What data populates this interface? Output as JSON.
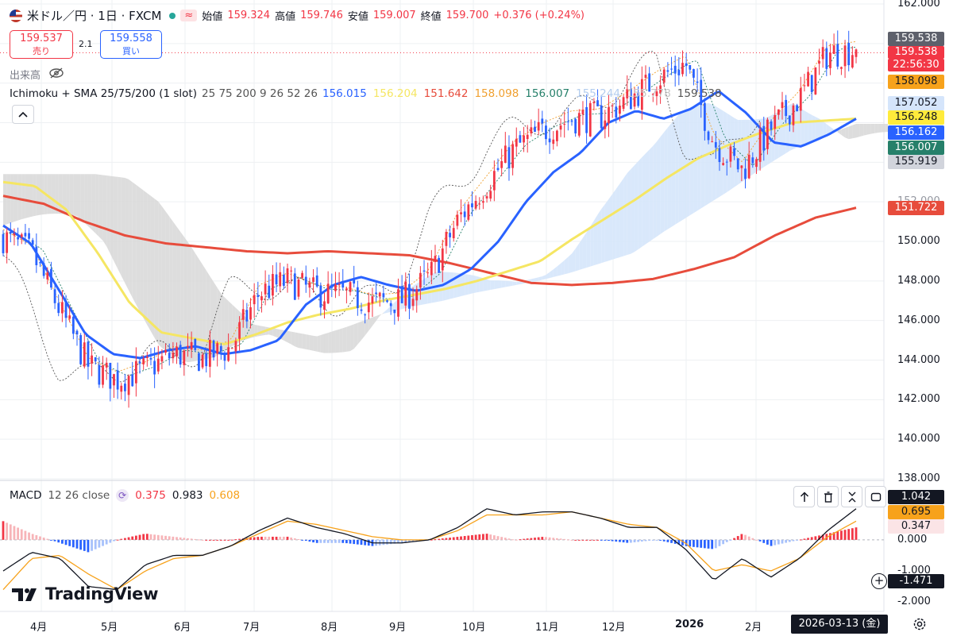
{
  "header": {
    "symbol": "米ドル／円 · 1日 · FXCM",
    "open_label": "始値",
    "open": "159.324",
    "high_label": "高値",
    "high": "159.746",
    "low_label": "安値",
    "low": "159.007",
    "close_label": "終値",
    "close": "159.700",
    "change": "+0.376 (+0.24%)",
    "sell_price": "159.537",
    "sell_label": "売り",
    "spread": "2.1",
    "buy_price": "159.558",
    "buy_label": "買い",
    "volume_label": "出来高"
  },
  "indicator": {
    "name": "Ichimoku + SMA 25/75/200 (1 slot)",
    "params": "25 75 200 9 26 52 26",
    "values": [
      {
        "text": "156.015",
        "color": "#2962ff"
      },
      {
        "text": "156.204",
        "color": "#f5e663"
      },
      {
        "text": "151.642",
        "color": "#e74c3c"
      },
      {
        "text": "158.098",
        "color": "#f0a030"
      },
      {
        "text": "156.007",
        "color": "#26806a"
      },
      {
        "text": "155.244",
        "color": "#b3cdee"
      },
      {
        "text": "155.778",
        "color": "#c7c7c7"
      },
      {
        "text": "159.538",
        "color": "#555555"
      }
    ]
  },
  "macd": {
    "name": "MACD",
    "params": "12 26 close",
    "hist": "0.375",
    "macd": "0.983",
    "signal": "0.608",
    "labels": {
      "macd": "1.042",
      "signal": "0.695",
      "hist": "0.347",
      "cross": "-1.471"
    },
    "ticks": [
      "0.000",
      "-1.000",
      "-2.000"
    ]
  },
  "price_axis": {
    "ticks": [
      "162.000",
      "150.000",
      "148.000",
      "146.000",
      "144.000",
      "142.000",
      "140.000",
      "138.000"
    ],
    "partial_tick": "152.000",
    "labels": [
      {
        "text": "159.538",
        "bg": "#5d606b",
        "fg": "#ffffff"
      },
      {
        "text": "159.538",
        "bg": "#f23645",
        "fg": "#ffffff"
      },
      {
        "text": "22:56:30",
        "bg": "#f23645",
        "fg": "#ffffff"
      },
      {
        "text": "158.098",
        "bg": "#f7a21b",
        "fg": "#131722"
      },
      {
        "text": "157.052",
        "bg": "#d5e5fb",
        "fg": "#131722"
      },
      {
        "text": "156.248",
        "bg": "#ffeb3b",
        "fg": "#131722"
      },
      {
        "text": "156.162",
        "bg": "#2962ff",
        "fg": "#ffffff"
      },
      {
        "text": "156.007",
        "bg": "#26806a",
        "fg": "#ffffff"
      },
      {
        "text": "155.919",
        "bg": "#d1d4dc",
        "fg": "#131722"
      },
      {
        "text": "151.722",
        "bg": "#e74c3c",
        "fg": "#ffffff"
      }
    ]
  },
  "time_axis": {
    "labels": [
      "4月",
      "5月",
      "6月",
      "7月",
      "8月",
      "9月",
      "10月",
      "11月",
      "12月",
      "2026",
      "2月"
    ],
    "cursor_date": "2026-03-13 (金)"
  },
  "brand": "TradingView",
  "colors": {
    "up": "#f23645",
    "down": "#2962ff",
    "sma25": "#2962ff",
    "sma75": "#f5e663",
    "sma200": "#e74c3c",
    "cloud_bull": "#d5e5fb",
    "cloud_bear": "#d9d9d9"
  },
  "chart_data": [
    {
      "type": "candlestick",
      "title": "米ドル／円 · 1日 · FXCM",
      "ylim": [
        138,
        162
      ],
      "x_months": [
        "4月",
        "5月",
        "6月",
        "7月",
        "8月",
        "9月",
        "10月",
        "11月",
        "12月",
        "2026",
        "2月"
      ],
      "sma25": [
        150.8,
        149.9,
        147.6,
        145.3,
        144.3,
        144.1,
        144.5,
        144.7,
        144.3,
        144.5,
        145.0,
        146.8,
        147.8,
        148.2,
        147.8,
        147.5,
        147.8,
        148.6,
        150.0,
        152.0,
        153.5,
        154.5,
        156.0,
        156.6,
        156.2,
        156.7,
        157.6,
        156.5,
        155.0,
        154.8,
        155.4,
        156.2
      ],
      "sma75": [
        153.0,
        152.8,
        151.6,
        149.4,
        146.9,
        145.4,
        145.1,
        144.8,
        145.3,
        145.9,
        146.3,
        146.6,
        147.0,
        147.3,
        147.6,
        148.0,
        148.5,
        149.0,
        150.1,
        151.1,
        152.1,
        153.2,
        154.2,
        154.9,
        155.5,
        156.0,
        156.1,
        156.2
      ],
      "sma200": [
        152.3,
        151.9,
        151.0,
        150.3,
        149.9,
        149.7,
        149.5,
        149.4,
        149.5,
        149.4,
        149.3,
        148.9,
        148.4,
        147.9,
        147.8,
        147.9,
        148.1,
        148.6,
        149.2,
        150.3,
        151.2,
        151.7
      ],
      "candles_close_sample": [
        150.2,
        149.4,
        146.5,
        143.7,
        143.0,
        143.5,
        144.3,
        144.1,
        144.6,
        147.4,
        148.0,
        147.4,
        147.3,
        146.9,
        147.0,
        148.2,
        151.1,
        152.9,
        154.7,
        155.6,
        156.2,
        156.3,
        157.2,
        158.2,
        159.0,
        155.0,
        153.6,
        155.7,
        157.2,
        159.5,
        159.7
      ],
      "last_close": 159.7
    },
    {
      "type": "macd",
      "params": "12 26 close",
      "ylim": [
        -2.3,
        1.4
      ],
      "macd": [
        -1.0,
        -0.4,
        -0.6,
        -1.5,
        -1.6,
        -0.8,
        -0.5,
        -0.5,
        -0.2,
        0.3,
        0.7,
        0.4,
        0.2,
        -0.1,
        -0.1,
        0.0,
        0.4,
        1.0,
        0.8,
        0.9,
        0.9,
        0.7,
        0.4,
        0.4,
        -0.3,
        -1.3,
        -0.6,
        -1.2,
        -0.6,
        0.3,
        1.0
      ],
      "signal": [
        -1.6,
        -0.6,
        -0.5,
        -1.1,
        -1.6,
        -1.0,
        -0.6,
        -0.5,
        -0.2,
        0.2,
        0.6,
        0.5,
        0.3,
        0.1,
        0.0,
        0.0,
        0.3,
        0.8,
        0.8,
        0.8,
        0.9,
        0.7,
        0.5,
        0.4,
        -0.1,
        -1.0,
        -0.8,
        -1.0,
        -0.6,
        0.1,
        0.6
      ],
      "last": {
        "macd": 0.983,
        "signal": 0.608,
        "hist": 0.375
      }
    }
  ]
}
